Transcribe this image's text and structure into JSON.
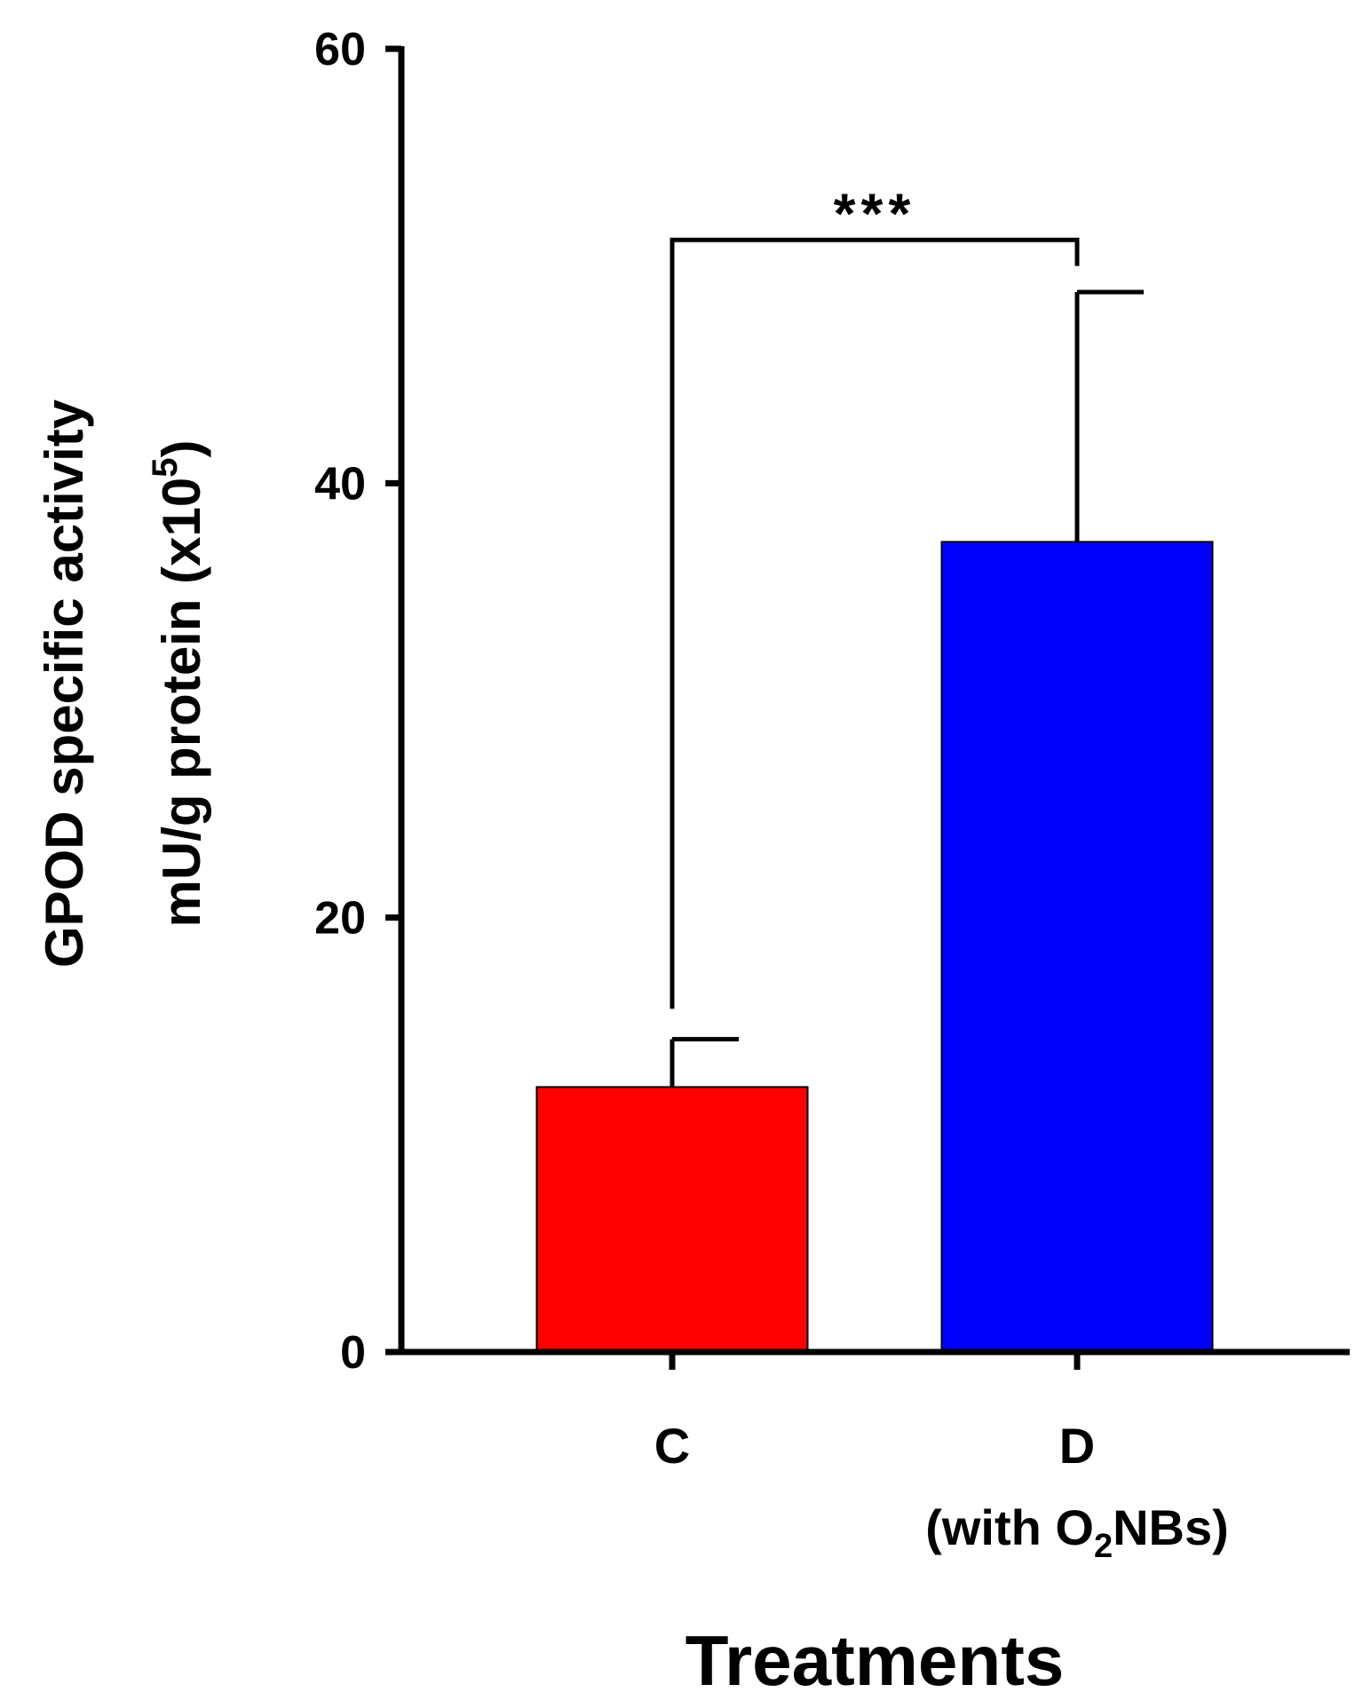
{
  "chart_data": {
    "type": "bar",
    "categories": [
      "C",
      "D"
    ],
    "category_sublabels": [
      "",
      "(with O2NBs)"
    ],
    "values": [
      12.2,
      37.3
    ],
    "errors": [
      2.2,
      11.5
    ],
    "colors": [
      "#ff0000",
      "#0000ff"
    ],
    "ylim": [
      0,
      60
    ],
    "yticks": [
      0,
      20,
      40,
      60
    ],
    "ylabel_line1": "GPOD specific activity",
    "ylabel_line2_prefix": "mU/g protein (x10",
    "ylabel_line2_exp": "5",
    "ylabel_line2_suffix": ")",
    "xlabel": "Treatments",
    "significance": {
      "label": "***",
      "from_category": 0,
      "to_category": 1,
      "level_value": 51.2,
      "left_drop_to_value": 15.8,
      "right_drop_to_value": 50.0
    },
    "sublabel_parts": {
      "prefix": "(with O",
      "subscript": "2",
      "suffix": "NBs)"
    }
  }
}
